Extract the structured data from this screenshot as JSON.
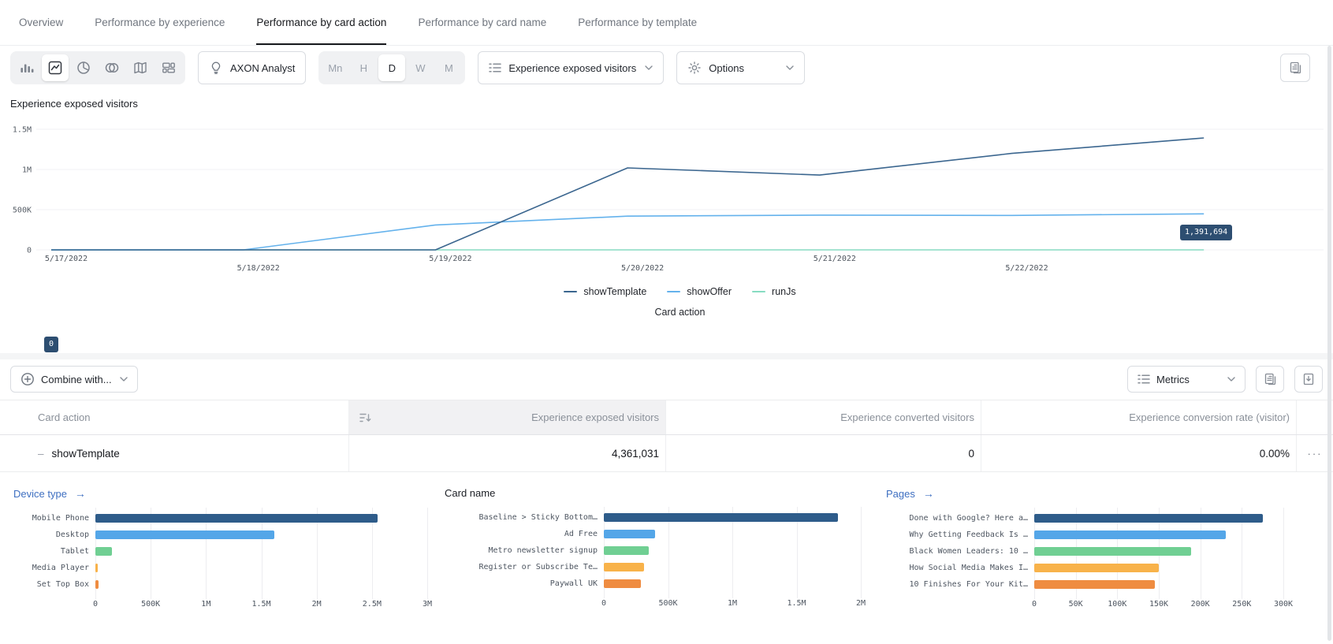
{
  "tabs": [
    "Overview",
    "Performance by experience",
    "Performance by card action",
    "Performance by card name",
    "Performance by template"
  ],
  "toolbar": {
    "axon_button": "AXON Analyst",
    "granularity": [
      "Mn",
      "H",
      "D",
      "W",
      "M"
    ],
    "metric_selector": "Experience exposed visitors",
    "options_label": "Options"
  },
  "line_chart": {
    "type": "line",
    "title": "Experience exposed visitors",
    "x_axis_title": "Card action",
    "x_labels": [
      "5/17/2022",
      "5/18/2022",
      "5/19/2022",
      "5/20/2022",
      "5/21/2022",
      "5/22/2022"
    ],
    "y_ticks": [
      "1.5M",
      "1M",
      "500K",
      "0"
    ],
    "y_tick_values": [
      1500000,
      1000000,
      500000,
      0
    ],
    "start_label": "0",
    "end_label": "1,391,694",
    "series": [
      {
        "name": "showTemplate",
        "color": "#3b668f",
        "values": [
          0,
          0,
          0,
          1020000,
          930000,
          1200000,
          1391694
        ]
      },
      {
        "name": "showOffer",
        "color": "#64b2ec",
        "values": [
          0,
          0,
          310000,
          420000,
          432000,
          428000,
          448000
        ]
      },
      {
        "name": "runJs",
        "color": "#87dcc2",
        "values": [
          0,
          0,
          0,
          0,
          0,
          0,
          0
        ]
      }
    ]
  },
  "table": {
    "combine_button": "Combine with...",
    "metrics_button": "Metrics",
    "columns": [
      "Card action",
      "Experience exposed visitors",
      "Experience converted visitors",
      "Experience conversion rate (visitor)"
    ],
    "rows": [
      {
        "card_action": "showTemplate",
        "exposed": "4,361,031",
        "converted": "0",
        "rate": "0.00%"
      }
    ]
  },
  "mini_charts": [
    {
      "type": "bar",
      "title": "Device type",
      "is_link": true,
      "max": 3000000,
      "x_ticks": [
        "0",
        "500K",
        "1M",
        "1.5M",
        "2M",
        "2.5M",
        "3M"
      ],
      "bars": [
        {
          "label": "Mobile Phone",
          "value": 2550000
        },
        {
          "label": "Desktop",
          "value": 1620000
        },
        {
          "label": "Tablet",
          "value": 150000
        },
        {
          "label": "Media Player",
          "value": 18000
        },
        {
          "label": "Set Top Box",
          "value": 25000
        }
      ]
    },
    {
      "type": "bar",
      "title": "Card name",
      "is_link": false,
      "max": 2000000,
      "x_ticks": [
        "0",
        "500K",
        "1M",
        "1.5M",
        "2M"
      ],
      "bars": [
        {
          "label": "Baseline > Sticky Bottom…",
          "value": 1820000
        },
        {
          "label": "Ad Free",
          "value": 400000
        },
        {
          "label": "Metro newsletter signup",
          "value": 350000
        },
        {
          "label": "Register or Subscribe Te…",
          "value": 314000
        },
        {
          "label": "Paywall UK",
          "value": 290000
        }
      ]
    },
    {
      "type": "bar",
      "title": "Pages",
      "is_link": true,
      "max": 300000,
      "x_ticks": [
        "0",
        "50K",
        "100K",
        "150K",
        "200K",
        "250K",
        "300K"
      ],
      "bars": [
        {
          "label": "Done with Google? Here a…",
          "value": 275000
        },
        {
          "label": "Why Getting Feedback Is …",
          "value": 231000
        },
        {
          "label": "Black Women Leaders: 10 …",
          "value": 189000
        },
        {
          "label": "How Social Media Makes I…",
          "value": 150000
        },
        {
          "label": "10 Finishes For Your Kit…",
          "value": 145000
        }
      ]
    }
  ],
  "icons": {
    "arrow": "→",
    "ellipsis": "···",
    "collapse_dash": "–"
  },
  "colors": {
    "bar_palette": [
      "#2e5c8a",
      "#54a6e8",
      "#70cf93",
      "#f8b24a",
      "#ef8c41"
    ],
    "link_blue": "#3e6fc1",
    "tooltip_bg": "#2d4e71"
  }
}
